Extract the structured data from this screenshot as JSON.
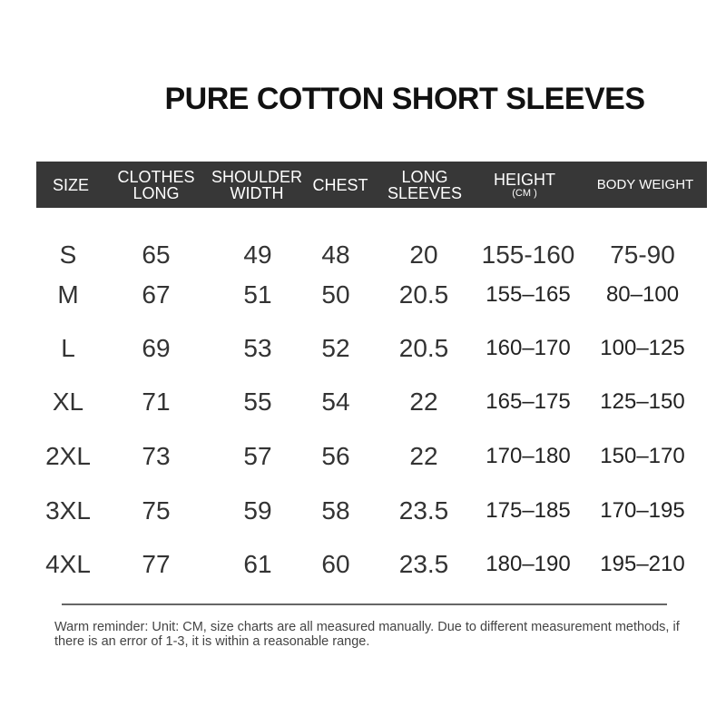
{
  "title": "PURE COTTON SHORT SLEEVES",
  "header": {
    "size": "SIZE",
    "clothes_long": [
      "CLOTHES",
      "LONG"
    ],
    "shoulder_width": [
      "SHOULDER",
      "WIDTH"
    ],
    "chest": "CHEST",
    "long_sleeves": [
      "LONG",
      "SLEEVES"
    ],
    "height": "HEIGHT",
    "height_unit": "(CM )",
    "body_weight": "BODY WEIGHT"
  },
  "rows": [
    [
      "S",
      "65",
      "49",
      "48",
      "20",
      "155-160",
      "75-90"
    ],
    [
      "M",
      "67",
      "51",
      "50",
      "20.5",
      "155–165",
      "80–100"
    ],
    [
      "L",
      "69",
      "53",
      "52",
      "20.5",
      "160–170",
      "100–125"
    ],
    [
      "XL",
      "71",
      "55",
      "54",
      "22",
      "165–175",
      "125–150"
    ],
    [
      "2XL",
      "73",
      "57",
      "56",
      "22",
      "170–180",
      "150–170"
    ],
    [
      "3XL",
      "75",
      "59",
      "58",
      "23.5",
      "175–185",
      "170–195"
    ],
    [
      "4XL",
      "77",
      "61",
      "60",
      "23.5",
      "180–190",
      "195–210"
    ]
  ],
  "note": "Warm reminder: Unit: CM, size charts are all measured manually. Due to different measurement methods, if there is an error of 1-3, it is within a reasonable range.",
  "colors": {
    "header_bg": "#373737",
    "header_text": "#ffffff"
  }
}
